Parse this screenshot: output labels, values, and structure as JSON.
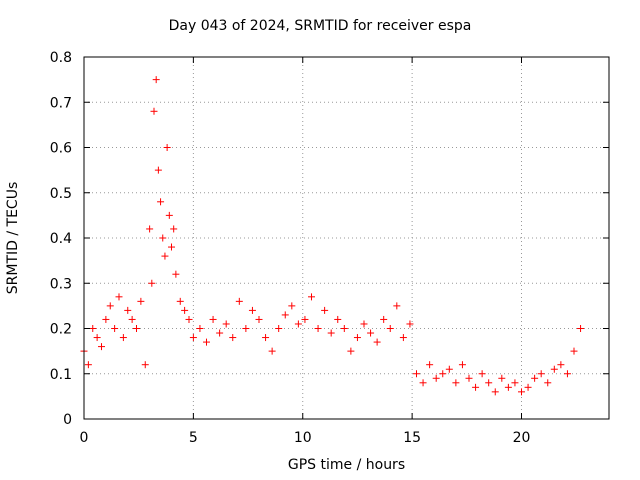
{
  "chart_data": {
    "type": "scatter",
    "title": "Day 043 of 2024, SRMTID for receiver espa",
    "xlabel": "GPS time / hours",
    "ylabel": "SRMTID / TECUs",
    "xlim": [
      0,
      24
    ],
    "ylim": [
      0,
      0.8
    ],
    "xticks": [
      "0",
      "5",
      "10",
      "15",
      "20"
    ],
    "yticks": [
      "0",
      "0.1",
      "0.2",
      "0.3",
      "0.4",
      "0.5",
      "0.6",
      "0.7",
      "0.8"
    ],
    "grid": true,
    "marker": "+",
    "series": [
      {
        "name": "SRMTID",
        "color": "#ff0000",
        "x": [
          0.0,
          0.2,
          0.4,
          0.6,
          0.8,
          1.0,
          1.2,
          1.4,
          1.6,
          1.8,
          2.0,
          2.2,
          2.4,
          2.6,
          2.8,
          3.0,
          3.1,
          3.2,
          3.3,
          3.4,
          3.5,
          3.6,
          3.7,
          3.8,
          3.9,
          4.0,
          4.1,
          4.2,
          4.4,
          4.6,
          4.8,
          5.0,
          5.3,
          5.6,
          5.9,
          6.2,
          6.5,
          6.8,
          7.1,
          7.4,
          7.7,
          8.0,
          8.3,
          8.6,
          8.9,
          9.2,
          9.5,
          9.8,
          10.1,
          10.4,
          10.7,
          11.0,
          11.3,
          11.6,
          11.9,
          12.2,
          12.5,
          12.8,
          13.1,
          13.4,
          13.7,
          14.0,
          14.3,
          14.6,
          14.9,
          15.2,
          15.5,
          15.8,
          16.1,
          16.4,
          16.7,
          17.0,
          17.3,
          17.6,
          17.9,
          18.2,
          18.5,
          18.8,
          19.1,
          19.4,
          19.7,
          20.0,
          20.3,
          20.6,
          20.9,
          21.2,
          21.5,
          21.8,
          22.1,
          22.4,
          22.7
        ],
        "y": [
          0.15,
          0.12,
          0.2,
          0.18,
          0.16,
          0.22,
          0.25,
          0.2,
          0.27,
          0.18,
          0.24,
          0.22,
          0.2,
          0.26,
          0.12,
          0.42,
          0.3,
          0.68,
          0.75,
          0.55,
          0.48,
          0.4,
          0.36,
          0.6,
          0.45,
          0.38,
          0.42,
          0.32,
          0.26,
          0.24,
          0.22,
          0.18,
          0.2,
          0.17,
          0.22,
          0.19,
          0.21,
          0.18,
          0.26,
          0.2,
          0.24,
          0.22,
          0.18,
          0.15,
          0.2,
          0.23,
          0.25,
          0.21,
          0.22,
          0.27,
          0.2,
          0.24,
          0.19,
          0.22,
          0.2,
          0.15,
          0.18,
          0.21,
          0.19,
          0.17,
          0.22,
          0.2,
          0.25,
          0.18,
          0.21,
          0.1,
          0.08,
          0.12,
          0.09,
          0.1,
          0.11,
          0.08,
          0.12,
          0.09,
          0.07,
          0.1,
          0.08,
          0.06,
          0.09,
          0.07,
          0.08,
          0.06,
          0.07,
          0.09,
          0.1,
          0.08,
          0.11,
          0.12,
          0.1,
          0.15,
          0.2
        ]
      }
    ]
  }
}
